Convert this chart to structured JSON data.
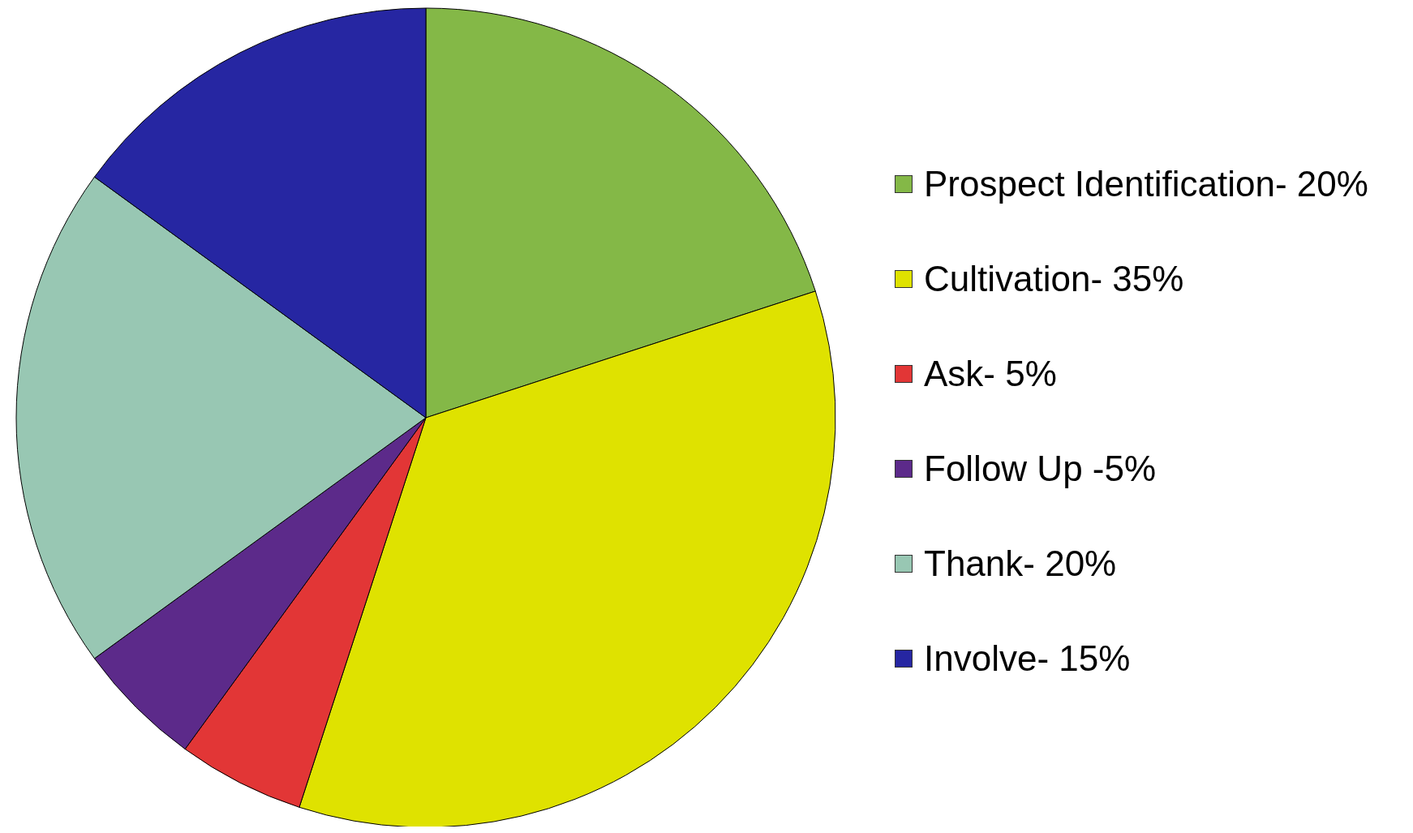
{
  "chart_data": {
    "type": "pie",
    "categories": [
      "Prospect Identification- 20%",
      "Cultivation- 35%",
      "Ask- 5%",
      "Follow Up -5%",
      "Thank- 20%",
      "Involve- 15%"
    ],
    "values": [
      20,
      35,
      5,
      5,
      20,
      15
    ],
    "colors": [
      "#84b847",
      "#dfe200",
      "#e23636",
      "#5c2a8a",
      "#98c7b3",
      "#2626a2"
    ],
    "legend": "right"
  }
}
